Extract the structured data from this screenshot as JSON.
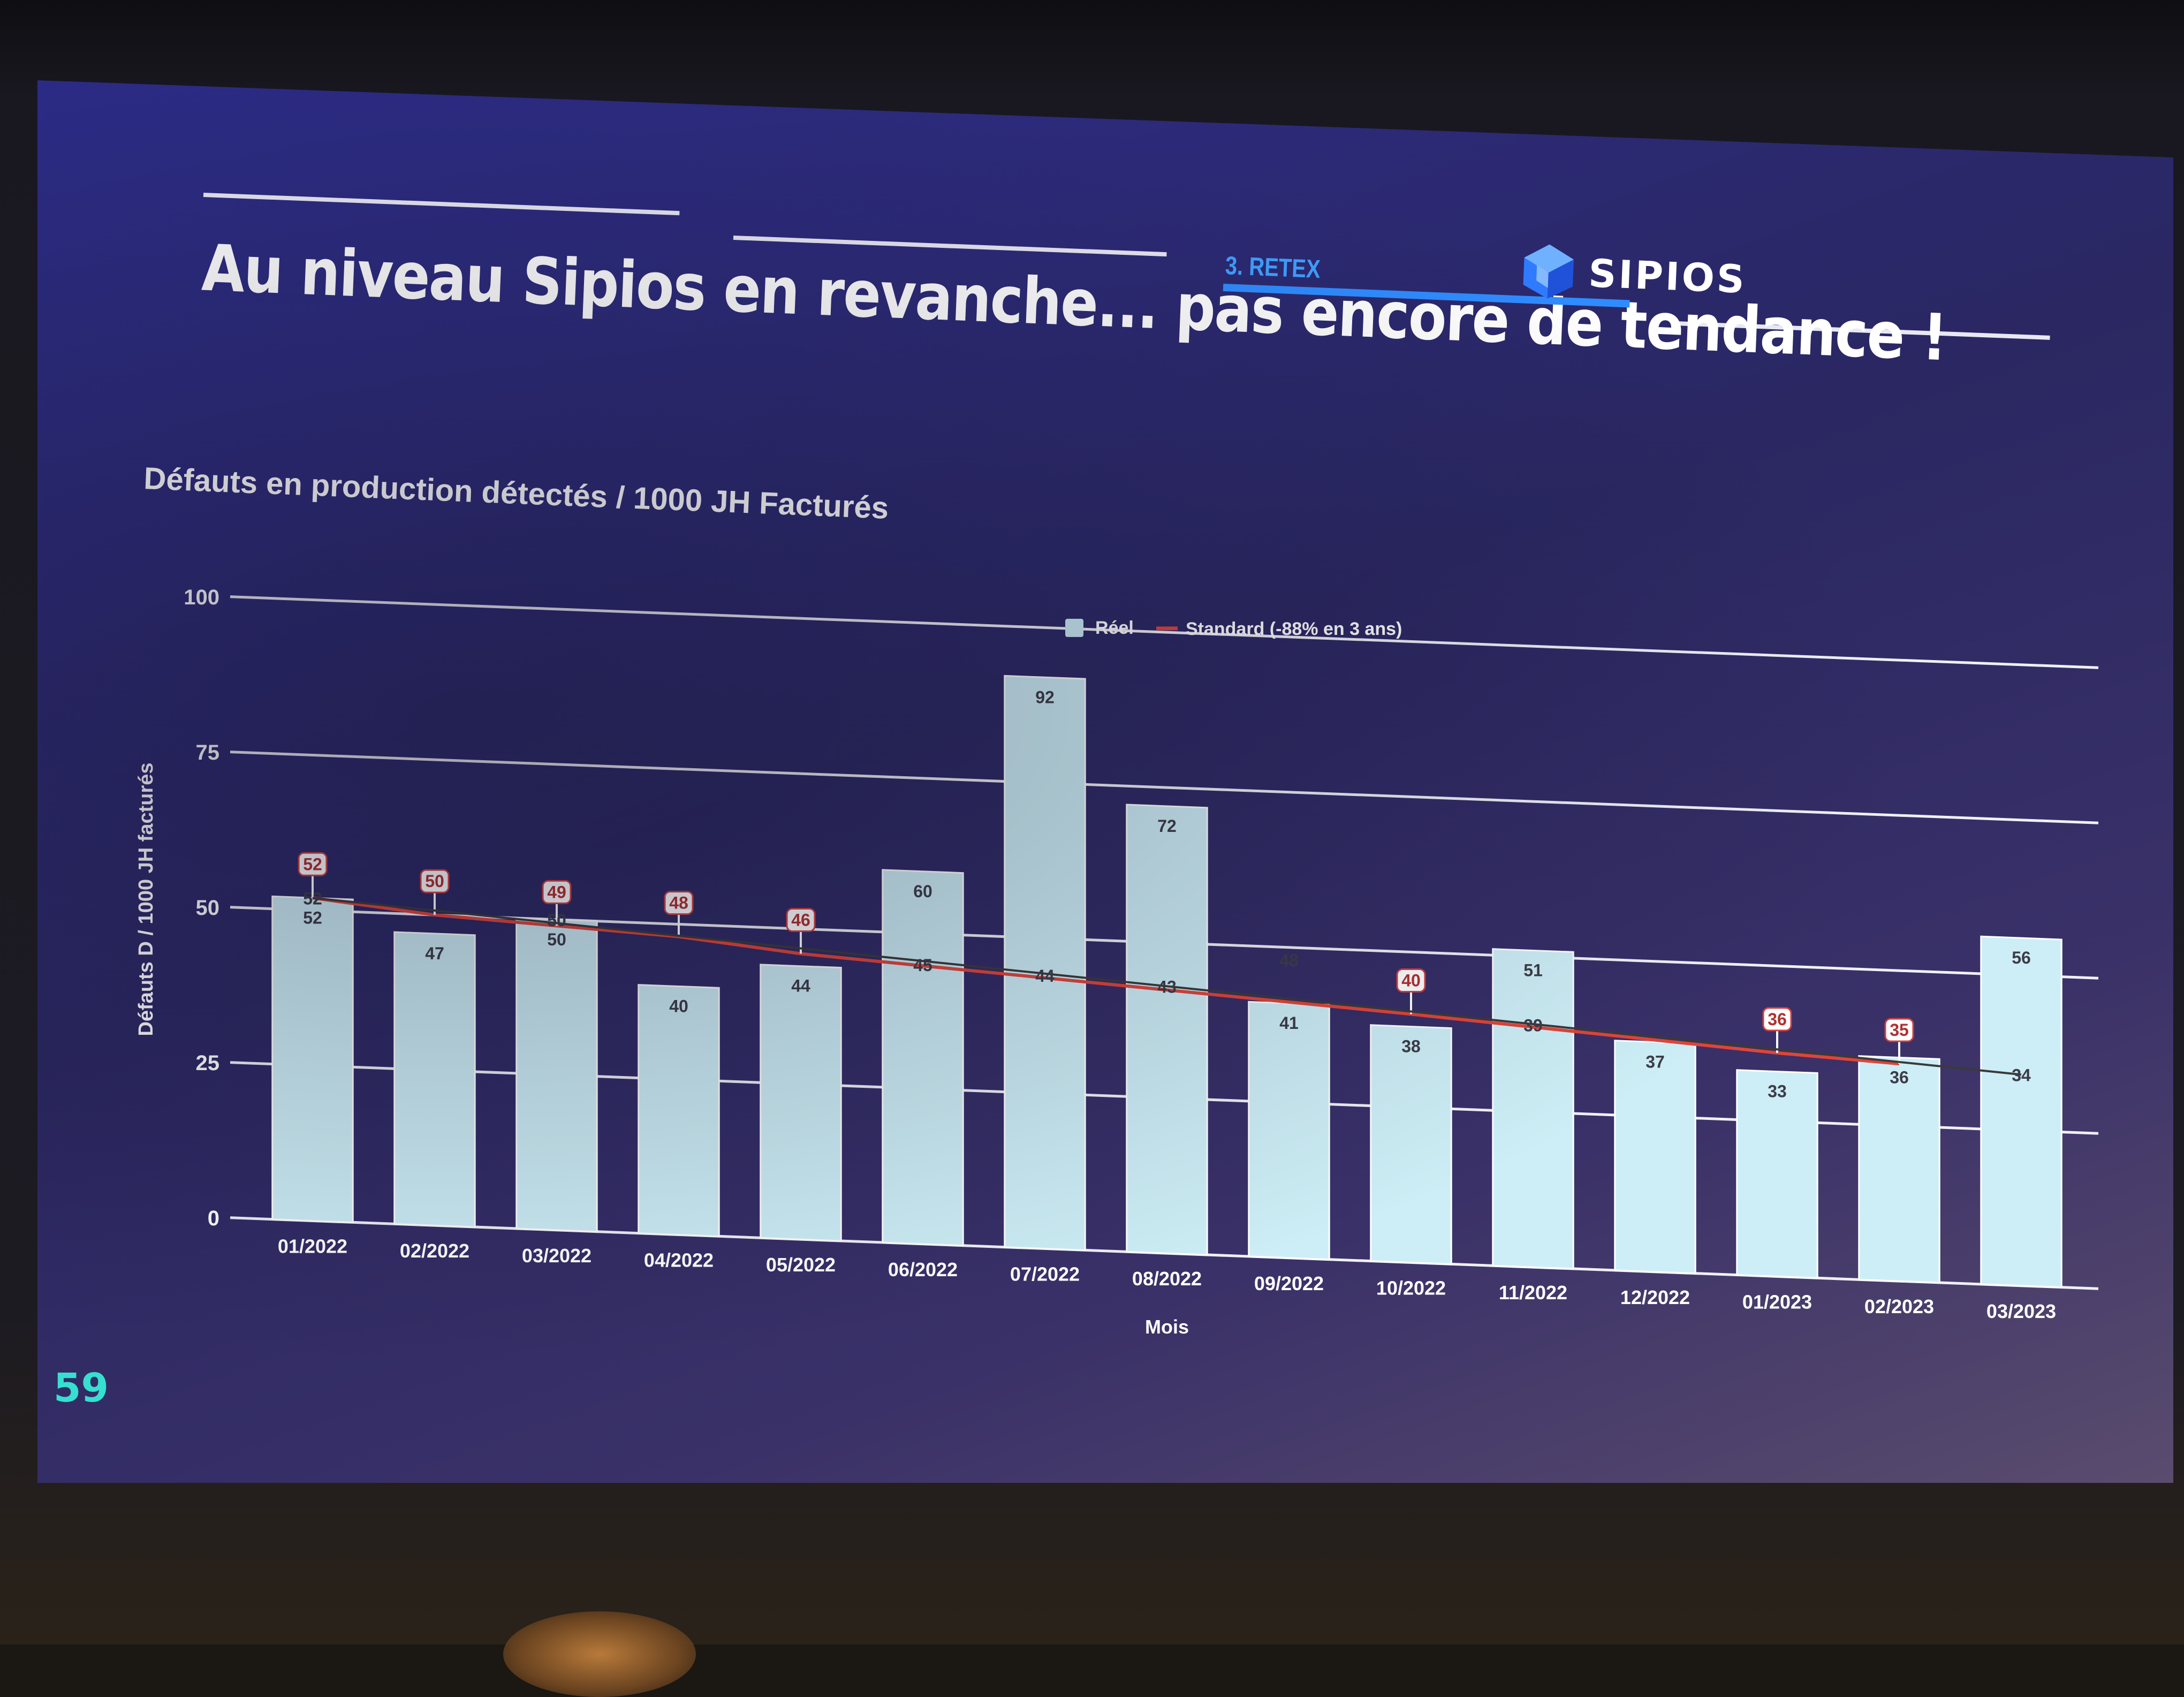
{
  "slide": {
    "title": "Au niveau Sipios en revanche... pas encore de tendance !",
    "section": "3. RETEX",
    "brand": "SIPIOS",
    "page_number": "59",
    "colors": {
      "accent": "#2f8cff",
      "page_number": "#35e0d0",
      "bar_fill": "#cdeef6",
      "standard_line": "#e0443a",
      "trend_line": "#3a3a3a"
    },
    "logo_icon": "sipios-cube-icon"
  },
  "chart_data": {
    "type": "bar",
    "title": "Défauts en production détectés / 1000 JH Facturés",
    "xlabel": "Mois",
    "ylabel": "Défauts D / 1000 JH facturés",
    "ylim": [
      0,
      100
    ],
    "yticks": [
      0,
      25,
      50,
      75,
      100
    ],
    "grid": true,
    "legend_position": "top-center",
    "legend": [
      {
        "name": "Réel",
        "kind": "square",
        "color": "#cdeef6"
      },
      {
        "name": "Standard (-88% en 3 ans)",
        "kind": "line",
        "color": "#e0443a"
      }
    ],
    "categories": [
      "01/2022",
      "02/2022",
      "03/2022",
      "04/2022",
      "05/2022",
      "06/2022",
      "07/2022",
      "08/2022",
      "09/2022",
      "10/2022",
      "11/2022",
      "12/2022",
      "01/2023",
      "02/2023",
      "03/2023"
    ],
    "series": [
      {
        "name": "Réel",
        "kind": "bar",
        "values": [
          52,
          47,
          50,
          40,
          44,
          60,
          92,
          72,
          41,
          38,
          51,
          37,
          33,
          36,
          56
        ]
      },
      {
        "name": "Standard (-88% en 3 ans)",
        "kind": "line",
        "values": [
          52,
          50,
          49,
          48,
          46,
          null,
          null,
          null,
          null,
          40,
          null,
          null,
          36,
          35,
          null
        ]
      },
      {
        "kind": "trend",
        "values": [
          52,
          null,
          50,
          null,
          null,
          45,
          44,
          43,
          48,
          null,
          39,
          null,
          null,
          null,
          34
        ]
      }
    ]
  }
}
